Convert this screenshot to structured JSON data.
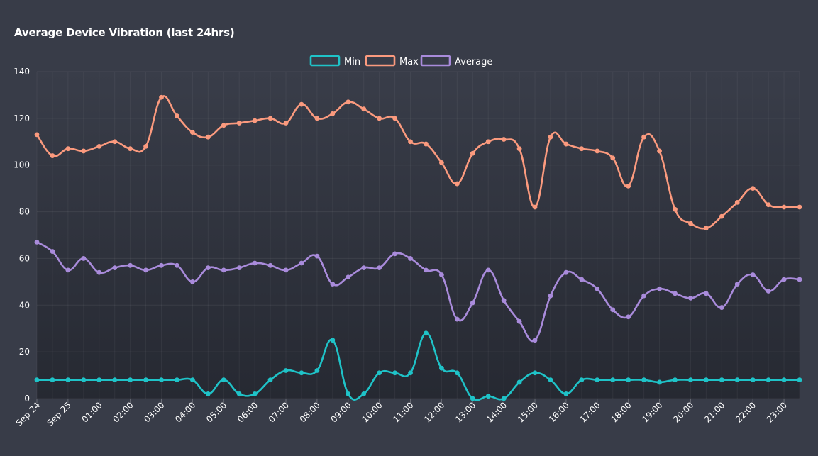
{
  "chart_data": {
    "type": "line",
    "title": "Average Device Vibration (last 24hrs)",
    "xlabel": "",
    "ylabel": "",
    "ylim": [
      0,
      140
    ],
    "yticks": [
      0,
      20,
      40,
      60,
      80,
      100,
      120,
      140
    ],
    "grid": true,
    "legend_position": "top-center",
    "x_tick_labels": [
      "Sep 24",
      "Sep 25",
      "01:00",
      "02:00",
      "03:00",
      "04:00",
      "05:00",
      "06:00",
      "07:00",
      "08:00",
      "09:00",
      "10:00",
      "11:00",
      "12:00",
      "13:00",
      "14:00",
      "15:00",
      "16:00",
      "17:00",
      "18:00",
      "19:00",
      "20:00",
      "21:00",
      "22:00",
      "23:00"
    ],
    "points_per_tick": 2,
    "series": [
      {
        "name": "Min",
        "color": "#1fc3c8",
        "values": [
          8,
          8,
          8,
          8,
          8,
          8,
          8,
          8,
          8,
          8,
          8,
          2,
          8,
          2,
          2,
          8,
          12,
          11,
          12,
          25,
          2,
          2,
          11,
          11,
          11,
          28,
          13,
          11,
          0,
          1,
          0,
          7,
          11,
          8,
          2,
          8,
          8,
          8,
          8,
          8,
          7,
          8,
          8,
          8,
          8,
          8,
          8,
          8,
          8,
          8
        ]
      },
      {
        "name": "Max",
        "color": "#fb9a7e",
        "values": [
          113,
          104,
          107,
          106,
          108,
          110,
          107,
          108,
          129,
          121,
          114,
          112,
          117,
          118,
          119,
          120,
          118,
          126,
          120,
          122,
          127,
          124,
          120,
          120,
          110,
          109,
          101,
          92,
          105,
          110,
          111,
          107,
          82,
          112,
          109,
          107,
          106,
          103,
          91,
          112,
          106,
          81,
          75,
          73,
          78,
          84,
          90,
          83,
          82,
          82
        ]
      },
      {
        "name": "Average",
        "color": "#a98bdb",
        "values": [
          67,
          63,
          55,
          60,
          54,
          56,
          57,
          55,
          57,
          57,
          50,
          56,
          55,
          56,
          58,
          57,
          55,
          58,
          61,
          49,
          52,
          56,
          56,
          62,
          60,
          55,
          53,
          34,
          41,
          55,
          42,
          33,
          25,
          44,
          54,
          51,
          47,
          38,
          35,
          44,
          47,
          45,
          43,
          45,
          39,
          49,
          53,
          46,
          51,
          51
        ]
      }
    ]
  }
}
